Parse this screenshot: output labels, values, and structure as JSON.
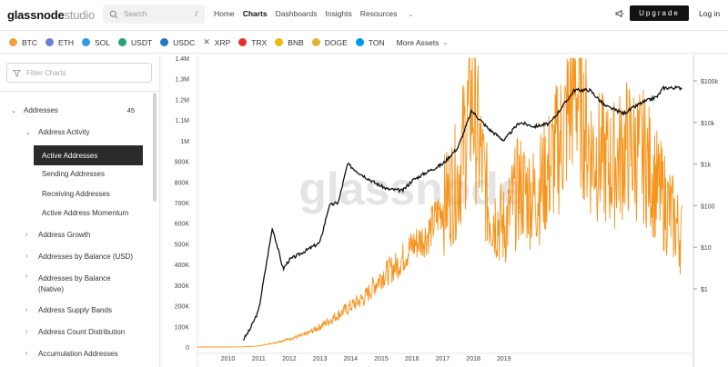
{
  "header": {
    "logo_main": "glassnode",
    "logo_sub": "studio",
    "search_placeholder": "Search",
    "search_shortcut": "/",
    "nav": [
      {
        "label": "Home"
      },
      {
        "label": "Charts"
      },
      {
        "label": "Dashboards"
      },
      {
        "label": "Insights"
      },
      {
        "label": "Resources"
      }
    ],
    "upgrade_label": "Upgrade",
    "login_label": "Log in"
  },
  "assets": {
    "items": [
      {
        "label": "BTC",
        "color": "#f2a23a",
        "icon": "btc-icon"
      },
      {
        "label": "ETH",
        "color": "#6b7fd7",
        "icon": "eth-icon"
      },
      {
        "label": "SOL",
        "color": "#2b9de0",
        "icon": "sol-icon"
      },
      {
        "label": "USDT",
        "color": "#26a17b",
        "icon": "usdt-icon"
      },
      {
        "label": "USDC",
        "color": "#2775ca",
        "icon": "usdc-icon"
      },
      {
        "label": "XRP",
        "color": "#555555",
        "icon": "xrp-icon"
      },
      {
        "label": "TRX",
        "color": "#e5302d",
        "icon": "trx-icon"
      },
      {
        "label": "BNB",
        "color": "#f0b90b",
        "icon": "bnb-icon"
      },
      {
        "label": "DOGE",
        "color": "#e0b52f",
        "icon": "doge-icon"
      },
      {
        "label": "TON",
        "color": "#0098ea",
        "icon": "ton-icon"
      }
    ],
    "more_label": "More Assets"
  },
  "sidebar": {
    "filter_placeholder": "Filter Charts",
    "category": "Addresses",
    "category_count": "45",
    "groups": [
      {
        "label": "Address Activity",
        "expanded": true
      },
      {
        "label": "Address Growth"
      },
      {
        "label": "Addresses by Balance (USD)"
      },
      {
        "label": "Addresses by Balance (Native)"
      },
      {
        "label": "Address Supply Bands"
      },
      {
        "label": "Address Count Distribution"
      },
      {
        "label": "Accumulation Addresses"
      }
    ],
    "activity_items": [
      {
        "label": "Active Addresses",
        "active": true
      },
      {
        "label": "Sending Addresses"
      },
      {
        "label": "Receiving Addresses"
      },
      {
        "label": "Active Address Momentum"
      }
    ]
  },
  "chart_data": {
    "type": "line",
    "watermark": "glassnode",
    "x_ticks": [
      "2010",
      "2011",
      "2012",
      "2013",
      "2014",
      "2015",
      "2016",
      "2017",
      "2018",
      "2019"
    ],
    "y_left_ticks": [
      "0",
      "100K",
      "200K",
      "300K",
      "400K",
      "500K",
      "600K",
      "700K",
      "800K",
      "900K",
      "1M",
      "1.1M",
      "1.2M",
      "1.3M",
      "1.4M"
    ],
    "y_right_ticks": [
      "$1",
      "$10",
      "$100",
      "$1k",
      "$10k",
      "$100k"
    ],
    "ylim_left": [
      0,
      1400000
    ],
    "right_axis_scale": "log",
    "series": [
      {
        "color": "#f7931a",
        "x": [
          2009.5,
          2010.0,
          2010.5,
          2011.0,
          2011.5,
          2012.0,
          2012.5,
          2013.0,
          2013.5,
          2014.0,
          2014.5,
          2015.0,
          2015.5,
          2016.0,
          2016.5,
          2017.0,
          2017.5,
          2017.95,
          2018.5,
          2019.0,
          2019.5,
          2020.0,
          2020.5,
          2021.0,
          2021.3,
          2021.8,
          2022.5,
          2023.0,
          2023.6,
          2024.0,
          2024.5,
          2024.8
        ],
        "y": [
          0,
          0,
          1000,
          5000,
          20000,
          40000,
          60000,
          100000,
          150000,
          200000,
          250000,
          350000,
          400000,
          500000,
          550000,
          700000,
          850000,
          1250000,
          700000,
          600000,
          800000,
          750000,
          900000,
          1100000,
          1350000,
          1000000,
          900000,
          1000000,
          950000,
          800000,
          650000,
          550000
        ]
      },
      {
        "color": "#111111",
        "x": [
          2010.5,
          2010.7,
          2011.0,
          2011.45,
          2011.8,
          2012.0,
          2012.5,
          2013.0,
          2013.3,
          2013.6,
          2013.9,
          2014.3,
          2014.8,
          2015.2,
          2015.7,
          2016.0,
          2016.5,
          2017.0,
          2017.5,
          2017.95,
          2018.5,
          2019.0,
          2019.5,
          2020.0,
          2020.5,
          2021.0,
          2021.3,
          2021.8,
          2022.3,
          2022.9,
          2023.5,
          2024.0,
          2024.2,
          2024.8
        ],
        "y": [
          0.06,
          0.1,
          0.3,
          30,
          3,
          5,
          8,
          13,
          100,
          120,
          1000,
          600,
          350,
          250,
          230,
          400,
          650,
          1000,
          2500,
          19000,
          7000,
          3700,
          10000,
          8000,
          9500,
          30000,
          60000,
          60000,
          25000,
          16500,
          30000,
          42000,
          68000,
          68000
        ]
      }
    ]
  }
}
